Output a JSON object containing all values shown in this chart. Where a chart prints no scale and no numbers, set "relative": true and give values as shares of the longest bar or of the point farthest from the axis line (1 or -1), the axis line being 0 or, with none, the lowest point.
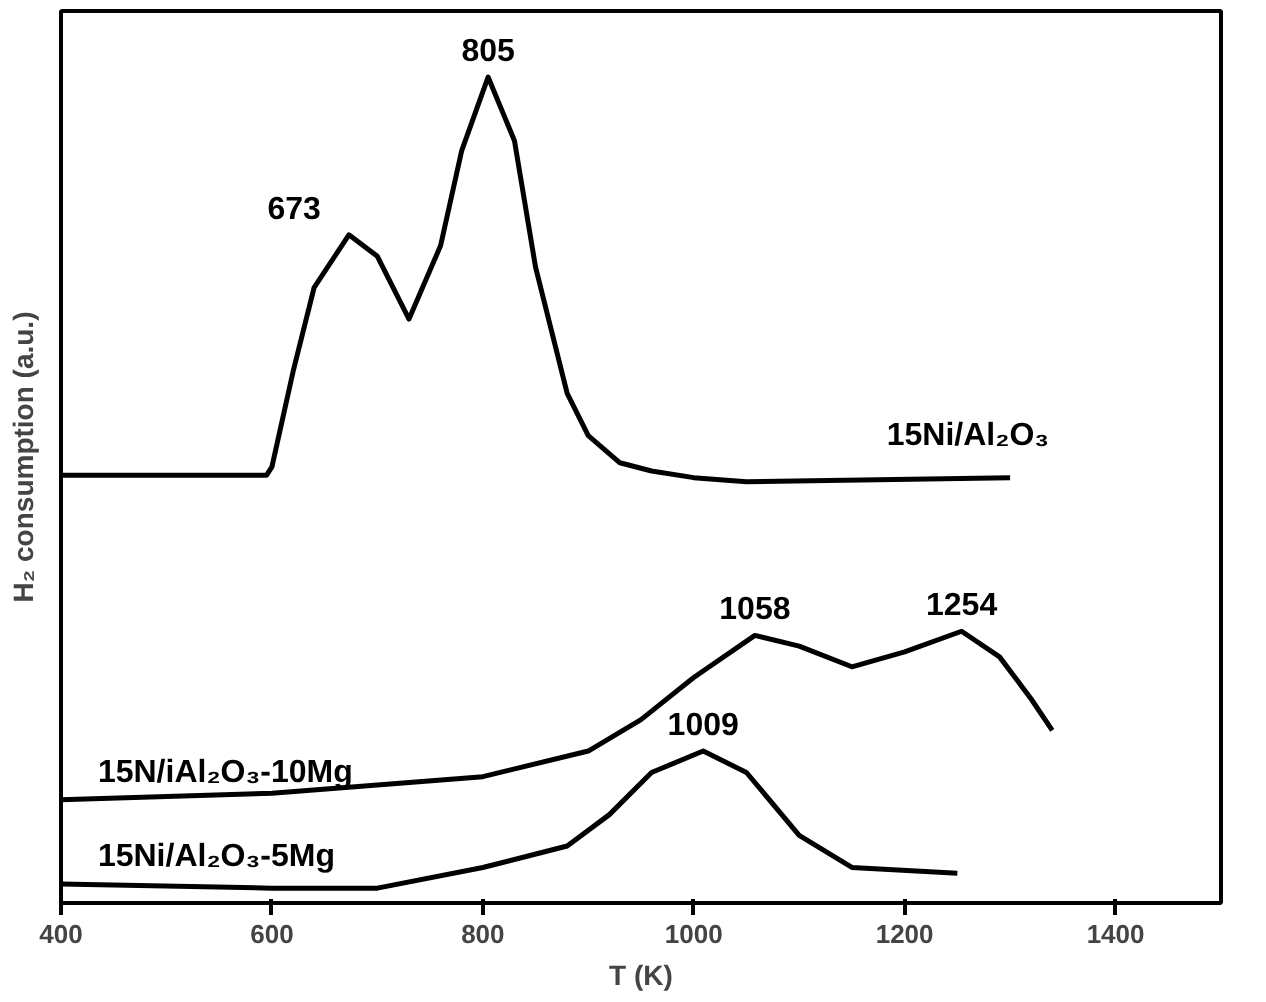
{
  "chart_data": {
    "type": "line",
    "relative": true,
    "xlabel": "T (K)",
    "ylabel": "H₂ consumption (a.u.)",
    "xlim": [
      400,
      1500
    ],
    "xticks": [
      400,
      600,
      800,
      1000,
      1200,
      1400
    ],
    "grid": false,
    "legend": false,
    "tick_labels": "x",
    "marker": "none",
    "line_style": "solid",
    "series": [
      {
        "name": "15Ni/Al₂O₃",
        "color": "#000000",
        "x": [
          400,
          500,
          595,
          600,
          620,
          640,
          673,
          700,
          730,
          760,
          780,
          805,
          830,
          850,
          880,
          900,
          930,
          960,
          1000,
          1050,
          1300
        ],
        "values": [
          0.518,
          0.518,
          0.518,
          0.528,
          0.643,
          0.745,
          0.809,
          0.783,
          0.707,
          0.796,
          0.911,
          1.0,
          0.923,
          0.77,
          0.617,
          0.566,
          0.533,
          0.523,
          0.515,
          0.51,
          0.515
        ]
      },
      {
        "name": "15N/iAl₂O₃-10Mg",
        "color": "#000000",
        "x": [
          400,
          600,
          800,
          900,
          950,
          1000,
          1058,
          1100,
          1150,
          1200,
          1254,
          1290,
          1320,
          1340
        ],
        "values": [
          0.125,
          0.133,
          0.153,
          0.184,
          0.222,
          0.273,
          0.324,
          0.311,
          0.286,
          0.304,
          0.329,
          0.298,
          0.247,
          0.209
        ]
      },
      {
        "name": "15Ni/Al₂O₃-5Mg",
        "color": "#000000",
        "x": [
          400,
          600,
          700,
          800,
          880,
          920,
          960,
          1009,
          1050,
          1100,
          1150,
          1250
        ],
        "values": [
          0.023,
          0.018,
          0.018,
          0.043,
          0.069,
          0.107,
          0.158,
          0.184,
          0.158,
          0.082,
          0.043,
          0.036
        ]
      }
    ],
    "annotations": [
      {
        "text": "673",
        "x": 673,
        "y": 0.809
      },
      {
        "text": "805",
        "x": 805,
        "y": 1.0
      },
      {
        "text": "1058",
        "x": 1058,
        "y": 0.324
      },
      {
        "text": "1254",
        "x": 1254,
        "y": 0.329
      },
      {
        "text": "1009",
        "x": 1009,
        "y": 0.184
      }
    ]
  }
}
